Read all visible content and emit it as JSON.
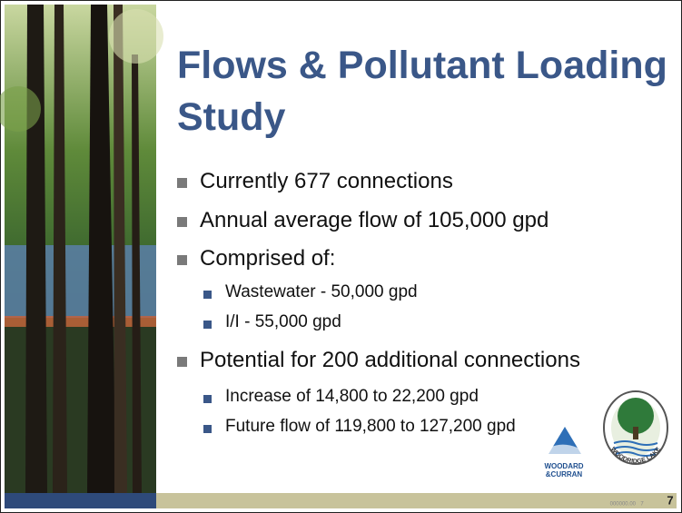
{
  "slide": {
    "title": "Flows & Pollutant Loading Study",
    "bullets": [
      {
        "level": 1,
        "text": "Currently 677 connections"
      },
      {
        "level": 1,
        "text": "Annual average flow of 105,000 gpd"
      },
      {
        "level": 1,
        "text": "Comprised of:"
      },
      {
        "level": 2,
        "text": "Wastewater - 50,000 gpd"
      },
      {
        "level": 2,
        "text": "I/I -  55,000 gpd"
      },
      {
        "level": 1,
        "text": "Potential for 200 additional connections"
      },
      {
        "level": 2,
        "text": "Increase of 14,800 to 22,200 gpd"
      },
      {
        "level": 2,
        "text": "Future flow of 119,800 to 127,200 gpd"
      }
    ],
    "logos": {
      "woodard_curran": [
        "WOODARD",
        "&CURRAN"
      ],
      "woodridge_lake": "WOODRIDGE LAKE"
    },
    "footer": {
      "code": "000000.00",
      "small_page": "7",
      "page": "7"
    }
  }
}
